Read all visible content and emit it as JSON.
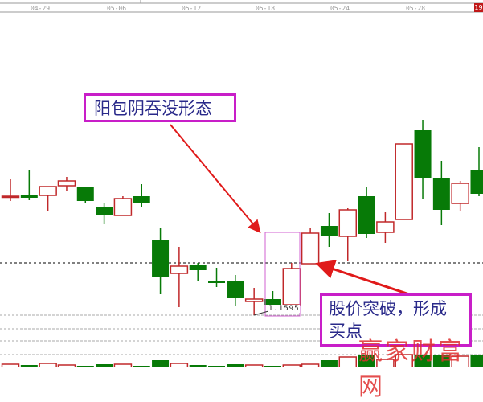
{
  "header": {
    "badge": "19"
  },
  "annotations": {
    "pattern_label": "阳包阴吞没形态",
    "breakout_label": "股价突破，形成买点",
    "price_label": "1.1595",
    "watermark": "赢家财富网"
  },
  "colors": {
    "up": "#c0282a",
    "down": "#077a07",
    "annotation_border": "#c81ec8",
    "arrow": "#e01a1a"
  },
  "chart_data": {
    "type": "candlestick",
    "x_tick_labels": [
      "04-29",
      "05-06",
      "05-12",
      "05-18",
      "05-24",
      "05-28"
    ],
    "reference_line": 1.1725,
    "marked_low": 1.1595,
    "candles": [
      {
        "o": 1.189,
        "h": 1.1933,
        "l": 1.1879,
        "c": 1.1891
      },
      {
        "o": 1.1895,
        "h": 1.1955,
        "l": 1.1881,
        "c": 1.1887
      },
      {
        "o": 1.1893,
        "h": 1.1915,
        "l": 1.1853,
        "c": 1.1915
      },
      {
        "o": 1.1917,
        "h": 1.1939,
        "l": 1.1905,
        "c": 1.1929
      },
      {
        "o": 1.1913,
        "h": 1.1913,
        "l": 1.1875,
        "c": 1.1879
      },
      {
        "o": 1.1865,
        "h": 1.1875,
        "l": 1.1821,
        "c": 1.1843
      },
      {
        "o": 1.1843,
        "h": 1.1891,
        "l": 1.1843,
        "c": 1.1885
      },
      {
        "o": 1.1891,
        "h": 1.1921,
        "l": 1.1865,
        "c": 1.1873
      },
      {
        "o": 1.1783,
        "h": 1.1811,
        "l": 1.1647,
        "c": 1.1689
      },
      {
        "o": 1.1699,
        "h": 1.1765,
        "l": 1.1615,
        "c": 1.1717
      },
      {
        "o": 1.1721,
        "h": 1.1725,
        "l": 1.1681,
        "c": 1.1707
      },
      {
        "o": 1.1681,
        "h": 1.1713,
        "l": 1.1665,
        "c": 1.1675
      },
      {
        "o": 1.1681,
        "h": 1.1695,
        "l": 1.1619,
        "c": 1.1637
      },
      {
        "o": 1.1629,
        "h": 1.1663,
        "l": 1.1595,
        "c": 1.1635
      },
      {
        "o": 1.1635,
        "h": 1.1655,
        "l": 1.1621,
        "c": 1.1621
      },
      {
        "o": 1.1621,
        "h": 1.1725,
        "l": 1.1621,
        "c": 1.1711
      },
      {
        "o": 1.1723,
        "h": 1.1813,
        "l": 1.1723,
        "c": 1.1799
      },
      {
        "o": 1.1817,
        "h": 1.1849,
        "l": 1.1765,
        "c": 1.1793
      },
      {
        "o": 1.1791,
        "h": 1.1861,
        "l": 1.1729,
        "c": 1.1857
      },
      {
        "o": 1.1891,
        "h": 1.1913,
        "l": 1.1787,
        "c": 1.1797
      },
      {
        "o": 1.1801,
        "h": 1.1851,
        "l": 1.1775,
        "c": 1.1827
      },
      {
        "o": 1.1833,
        "h": 1.2021,
        "l": 1.1833,
        "c": 1.2021
      },
      {
        "o": 1.2055,
        "h": 1.2081,
        "l": 1.1885,
        "c": 1.1935
      },
      {
        "o": 1.1935,
        "h": 1.1979,
        "l": 1.1819,
        "c": 1.1857
      },
      {
        "o": 1.1873,
        "h": 1.1929,
        "l": 1.1853,
        "c": 1.1923
      },
      {
        "o": 1.1957,
        "h": 1.2013,
        "l": 1.1891,
        "c": 1.1897
      }
    ],
    "volume": [
      4,
      3,
      5,
      3,
      2,
      4,
      4,
      2,
      9,
      5,
      3,
      2,
      4,
      3,
      2,
      3,
      4,
      9,
      13,
      15,
      10,
      16,
      16,
      16,
      14,
      16
    ]
  }
}
